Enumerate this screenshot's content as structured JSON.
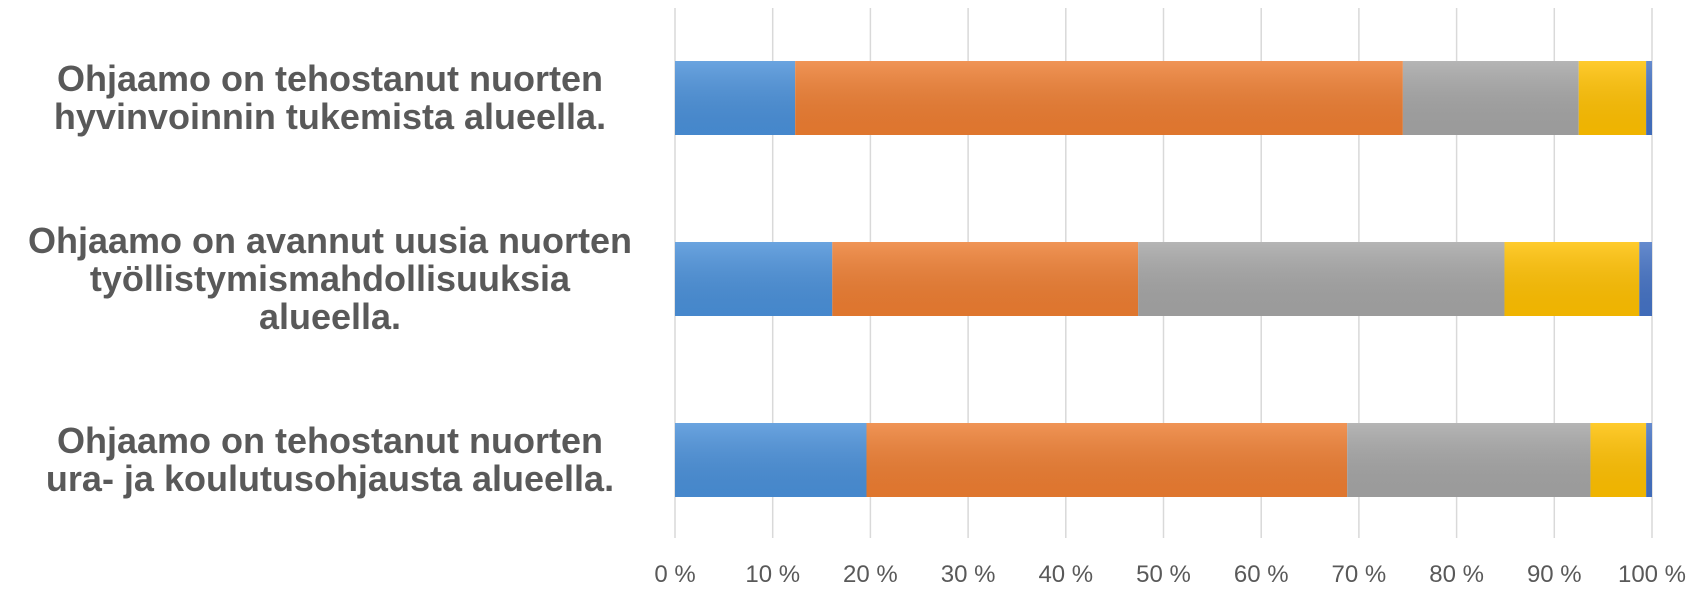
{
  "chart_data": {
    "type": "bar",
    "orientation": "horizontal",
    "stacked": "percent",
    "title": "",
    "xlabel": "",
    "ylabel": "",
    "xlim": [
      0,
      100
    ],
    "grid": true,
    "legend": "none",
    "x_ticks": [
      "0 %",
      "10 %",
      "20 %",
      "30 %",
      "40 %",
      "50 %",
      "60 %",
      "70 %",
      "80 %",
      "90 %",
      "100 %"
    ],
    "categories": [
      [
        "Ohjaamo on tehostanut nuorten",
        "hyvinvoinnin tukemista alueella."
      ],
      [
        "Ohjaamo on avannut uusia nuorten",
        "työllistymismahdollisuuksia",
        "alueella."
      ],
      [
        "Ohjaamo on tehostanut nuorten",
        "ura- ja koulutusohjausta alueella."
      ]
    ],
    "series": [
      {
        "color": "#4a90d9",
        "values": [
          12.3,
          16.1,
          19.6
        ]
      },
      {
        "color": "#ed7d31",
        "values": [
          62.2,
          31.3,
          49.2
        ]
      },
      {
        "color": "#a5a5a5",
        "values": [
          18.0,
          37.5,
          24.9
        ]
      },
      {
        "color": "#ffc000",
        "values": [
          6.9,
          13.8,
          5.7
        ]
      },
      {
        "color": "#4472c4",
        "values": [
          0.6,
          1.3,
          0.6
        ]
      }
    ]
  }
}
